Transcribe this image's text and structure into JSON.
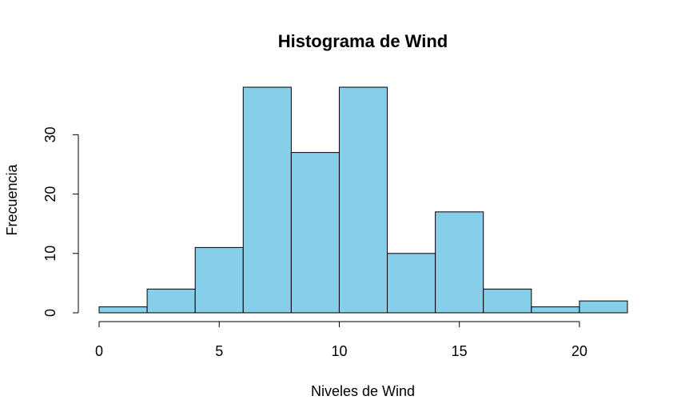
{
  "chart_data": {
    "type": "bar",
    "title": "Histograma de Wind",
    "xlabel": "Niveles de Wind",
    "ylabel": "Frecuencia",
    "bins": [
      {
        "start": 0,
        "end": 2,
        "count": 1
      },
      {
        "start": 2,
        "end": 4,
        "count": 4
      },
      {
        "start": 4,
        "end": 6,
        "count": 11
      },
      {
        "start": 6,
        "end": 8,
        "count": 38
      },
      {
        "start": 8,
        "end": 10,
        "count": 27
      },
      {
        "start": 10,
        "end": 12,
        "count": 38
      },
      {
        "start": 12,
        "end": 14,
        "count": 10
      },
      {
        "start": 14,
        "end": 16,
        "count": 17
      },
      {
        "start": 16,
        "end": 18,
        "count": 4
      },
      {
        "start": 18,
        "end": 20,
        "count": 1
      },
      {
        "start": 20,
        "end": 22,
        "count": 2
      }
    ],
    "xlim": [
      0,
      22
    ],
    "ylim": [
      0,
      38
    ],
    "x_ticks": [
      "0",
      "5",
      "10",
      "15",
      "20"
    ],
    "y_ticks": [
      "0",
      "10",
      "20",
      "30"
    ],
    "bar_color": "#87CEEB",
    "border_color": "#000000",
    "grid": false,
    "legend": "none"
  }
}
